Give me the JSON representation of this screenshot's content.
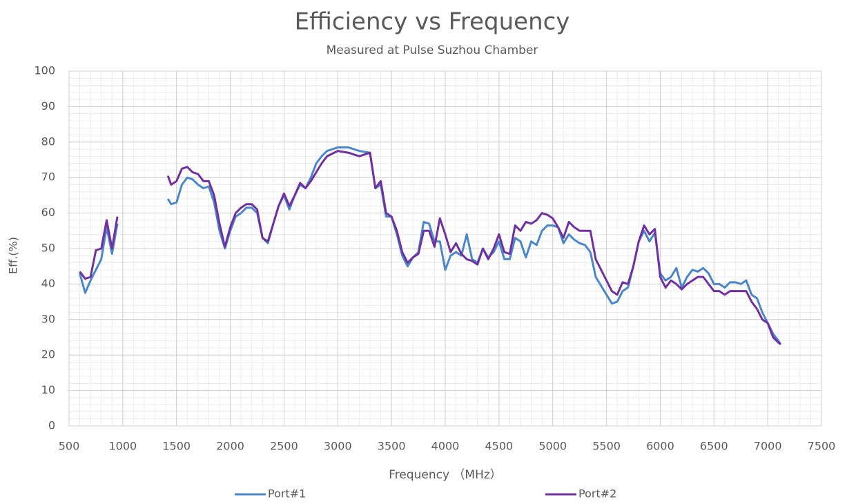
{
  "chart_data": {
    "type": "line",
    "title": "Efficiency vs Frequency",
    "subtitle": "Measured at Pulse Suzhou Chamber",
    "x_label": "Frequency （MHz）",
    "y_label": "Eff.(%)",
    "x": [
      600,
      650,
      700,
      750,
      800,
      850,
      900,
      950,
      1200,
      1420,
      1450,
      1500,
      1550,
      1600,
      1650,
      1700,
      1750,
      1800,
      1850,
      1900,
      1950,
      2000,
      2050,
      2100,
      2150,
      2200,
      2250,
      2300,
      2350,
      2400,
      2450,
      2500,
      2550,
      2600,
      2650,
      2700,
      2750,
      2800,
      2850,
      2900,
      3000,
      3100,
      3200,
      3300,
      3350,
      3400,
      3450,
      3500,
      3550,
      3600,
      3650,
      3700,
      3750,
      3800,
      3850,
      3900,
      3950,
      4000,
      4050,
      4100,
      4150,
      4200,
      4250,
      4300,
      4350,
      4400,
      4450,
      4500,
      4550,
      4600,
      4650,
      4700,
      4750,
      4800,
      4850,
      4900,
      4950,
      5000,
      5050,
      5100,
      5150,
      5200,
      5250,
      5300,
      5350,
      5400,
      5450,
      5500,
      5550,
      5600,
      5650,
      5700,
      5750,
      5800,
      5850,
      5900,
      5950,
      6000,
      6050,
      6100,
      6150,
      6200,
      6250,
      6300,
      6350,
      6400,
      6450,
      6500,
      6550,
      6600,
      6650,
      6700,
      6750,
      6800,
      6850,
      6900,
      6950,
      7000,
      7050,
      7100,
      7120
    ],
    "series": [
      {
        "name": "Port#1",
        "color": "#4a86c8",
        "values": [
          43,
          37.5,
          41,
          44,
          47,
          56,
          48.5,
          57,
          null,
          64,
          62.5,
          63,
          68,
          70,
          69.5,
          68,
          67,
          67.5,
          63,
          55,
          50,
          55,
          59,
          60,
          61.5,
          61.5,
          60,
          53,
          51.5,
          57,
          62,
          65,
          61,
          65,
          68,
          67,
          70,
          74,
          76,
          77.5,
          78.5,
          78.5,
          77.5,
          77,
          67,
          68,
          59,
          59,
          54,
          48,
          45,
          47.5,
          49,
          57.5,
          57,
          52,
          52,
          44,
          48,
          49,
          48,
          54,
          47,
          46,
          50,
          47.5,
          49,
          52,
          47,
          47,
          53,
          52,
          47.5,
          52,
          51,
          55,
          56.5,
          56.5,
          56,
          51.5,
          54,
          52.5,
          51.5,
          51,
          49,
          42,
          39.5,
          37,
          34.5,
          35,
          38,
          39,
          45,
          52,
          55,
          52,
          54.5,
          43,
          41,
          42,
          44.5,
          39,
          42,
          44,
          43.5,
          44.5,
          43,
          40,
          40,
          39,
          40.5,
          40.5,
          40,
          41,
          37,
          36,
          32,
          29,
          26,
          24,
          23
        ]
      },
      {
        "name": "Port#2",
        "color": "#7030a0",
        "values": [
          43.5,
          41.5,
          42,
          49.5,
          50,
          58,
          50,
          59,
          null,
          70.5,
          68,
          69,
          72.5,
          73,
          71.5,
          71,
          69,
          69,
          65,
          57,
          50.5,
          56,
          60,
          61.5,
          62.5,
          62.5,
          61,
          53,
          52,
          57,
          62,
          65.5,
          62,
          65,
          68.5,
          67,
          69,
          71.5,
          74,
          76,
          77.5,
          77,
          76,
          77,
          67,
          69,
          60,
          59,
          55,
          49,
          46,
          47.5,
          48.5,
          55,
          55,
          50.5,
          58.5,
          54,
          49,
          51.5,
          48.5,
          47,
          46.5,
          45.5,
          50,
          47,
          50,
          54,
          49,
          48.5,
          56.5,
          55,
          57.5,
          57,
          58,
          60,
          59.5,
          58.5,
          56,
          53,
          57.5,
          56,
          55,
          55,
          55,
          47,
          44,
          41,
          38,
          37,
          40.5,
          40,
          45,
          52,
          56.5,
          54,
          55.5,
          42,
          39,
          41,
          40,
          38.5,
          40,
          41,
          42,
          42,
          40,
          38,
          38,
          37,
          38,
          38,
          38,
          38,
          35,
          33,
          30,
          29,
          25,
          23.5,
          23
        ]
      }
    ],
    "xlim": [
      500,
      7500
    ],
    "xticks": [
      500,
      1000,
      1500,
      2000,
      2500,
      3000,
      3500,
      4000,
      4500,
      5000,
      5500,
      6000,
      6500,
      7000,
      7500
    ],
    "ylim": [
      0,
      100
    ],
    "yticks": [
      0,
      10,
      20,
      30,
      40,
      50,
      60,
      70,
      80,
      90,
      100
    ],
    "grid": true,
    "xminor": 100,
    "yminor": 2,
    "legend": "bottom"
  }
}
